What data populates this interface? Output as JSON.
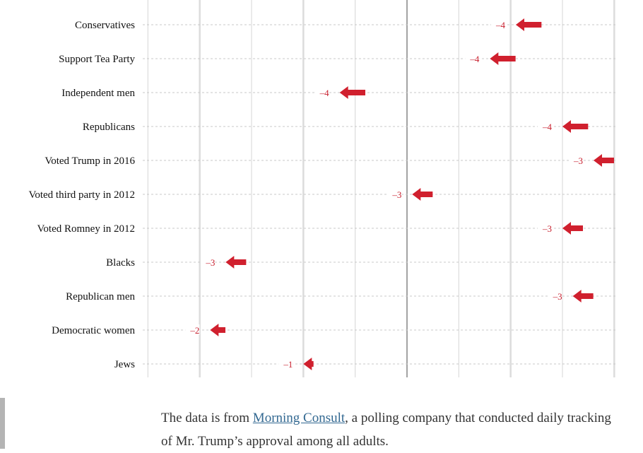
{
  "chart_data": {
    "type": "arrow",
    "title": "",
    "xlabel": "",
    "ylabel": "",
    "xlim": [
      0,
      90
    ],
    "center_value": 50,
    "grid": true,
    "arrow_color": "#d0202e",
    "label_color": "#c8212f",
    "categories": [
      "Conservatives",
      "Support Tea Party",
      "Independent men",
      "Republicans",
      "Voted Trump in 2016",
      "Voted third party in 2012",
      "Voted Romney in 2012",
      "Blacks",
      "Republican men",
      "Democratic women",
      "Jews"
    ],
    "series": [
      {
        "name": "start",
        "values": [
          75,
          70,
          41,
          84,
          89,
          54,
          83,
          18,
          85,
          14,
          31
        ]
      },
      {
        "name": "end",
        "values": [
          71,
          66,
          37,
          80,
          86,
          51,
          80,
          15,
          82,
          12,
          30
        ]
      }
    ],
    "change_labels": [
      "–4",
      "–4",
      "–4",
      "–4",
      "–3",
      "–3",
      "–3",
      "–3",
      "–3",
      "–2",
      "–1"
    ]
  },
  "caption": {
    "before": "The data is from ",
    "link": "Morning Consult",
    "after": ", a polling company that conducted daily tracking of Mr. Trump’s approval among all adults."
  }
}
